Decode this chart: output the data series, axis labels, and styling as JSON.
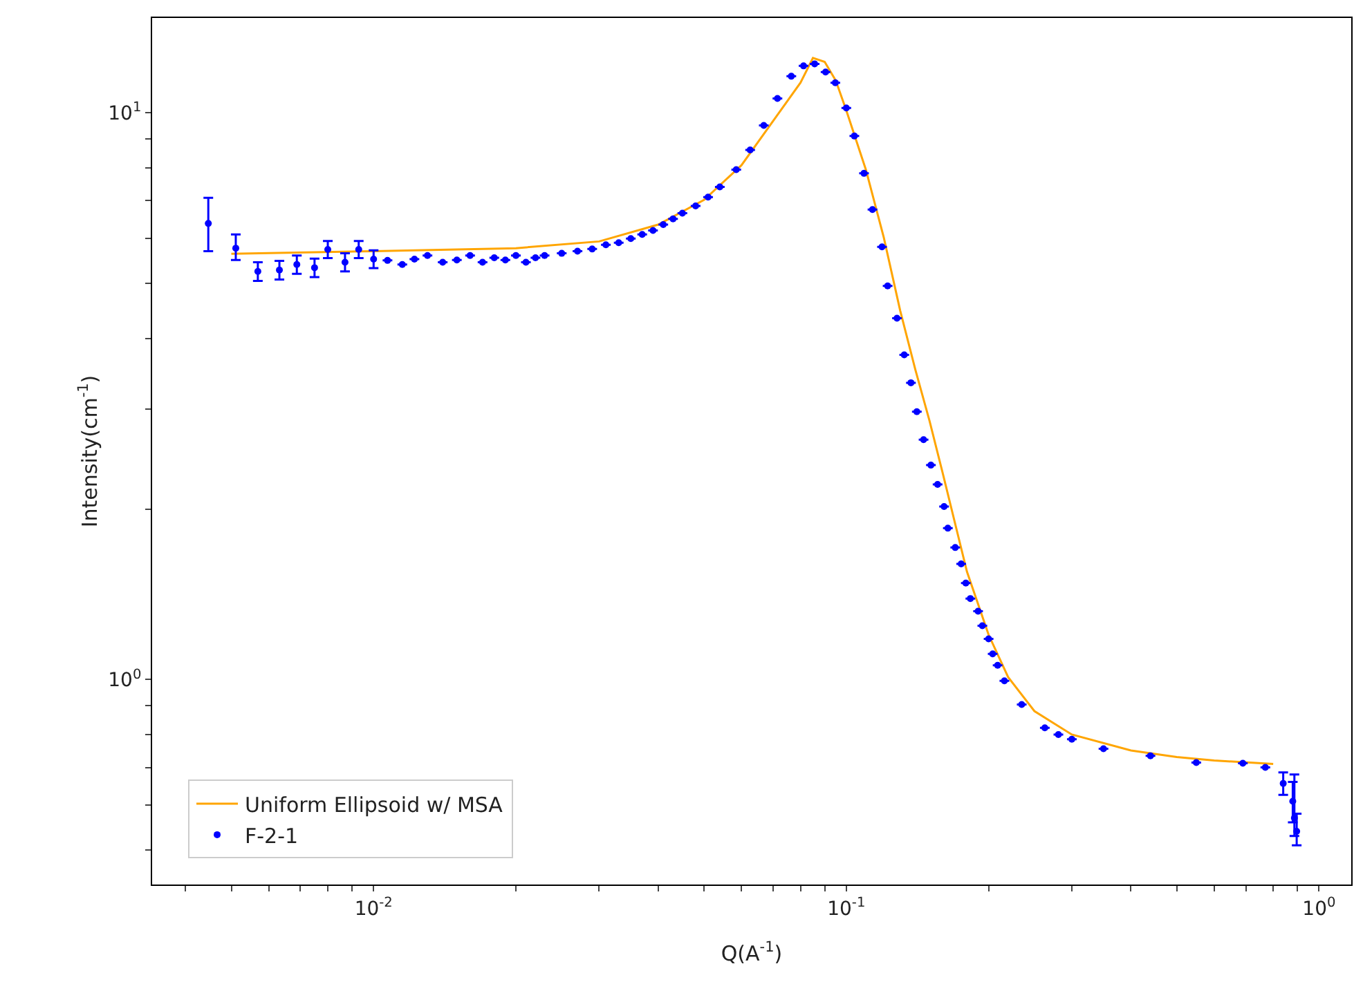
{
  "chart_data": {
    "type": "scatter",
    "xlabel": "Q(A$^{-1}$)",
    "ylabel": "Intensity(cm$^{-1}$)",
    "log": "xy",
    "grid": false,
    "legend": "bottom left",
    "line_style": "solid",
    "xlim": [
      0.0034,
      1.17
    ],
    "ylim": [
      0.435,
      14.7
    ],
    "xticks": [
      {
        "value": 0.004,
        "label": null
      },
      {
        "value": 0.005,
        "label": null
      },
      {
        "value": 0.006,
        "label": null
      },
      {
        "value": 0.007,
        "label": null
      },
      {
        "value": 0.008,
        "label": null
      },
      {
        "value": 0.009,
        "label": null
      },
      {
        "value": 0.01,
        "label": "10$^{-2}$"
      },
      {
        "value": 0.02,
        "label": null
      },
      {
        "value": 0.03,
        "label": null
      },
      {
        "value": 0.04,
        "label": null
      },
      {
        "value": 0.05,
        "label": null
      },
      {
        "value": 0.06,
        "label": null
      },
      {
        "value": 0.07,
        "label": null
      },
      {
        "value": 0.08,
        "label": null
      },
      {
        "value": 0.09,
        "label": null
      },
      {
        "value": 0.1,
        "label": "10$^{-1}$"
      },
      {
        "value": 0.2,
        "label": null
      },
      {
        "value": 0.3,
        "label": null
      },
      {
        "value": 0.4,
        "label": null
      },
      {
        "value": 0.5,
        "label": null
      },
      {
        "value": 0.6,
        "label": null
      },
      {
        "value": 0.7,
        "label": null
      },
      {
        "value": 0.8,
        "label": null
      },
      {
        "value": 0.9,
        "label": null
      },
      {
        "value": 1,
        "label": "10$^{0}$"
      }
    ],
    "yticks": [
      {
        "value": 0.5,
        "label": null
      },
      {
        "value": 0.6,
        "label": null
      },
      {
        "value": 0.7,
        "label": null
      },
      {
        "value": 0.8,
        "label": null
      },
      {
        "value": 0.9,
        "label": null
      },
      {
        "value": 1,
        "label": "10$^{0}$"
      },
      {
        "value": 2,
        "label": null
      },
      {
        "value": 3,
        "label": null
      },
      {
        "value": 4,
        "label": null
      },
      {
        "value": 5,
        "label": null
      },
      {
        "value": 6,
        "label": null
      },
      {
        "value": 7,
        "label": null
      },
      {
        "value": 8,
        "label": null
      },
      {
        "value": 9,
        "label": null
      },
      {
        "value": 10,
        "label": "10$^{1}$"
      }
    ],
    "series": [
      {
        "type": "line",
        "name": "Uniform Ellipsoid w/ MSA",
        "color": "#ffa500",
        "x": [
          0.005,
          0.01,
          0.02,
          0.03,
          0.04,
          0.05,
          0.06,
          0.07,
          0.08,
          0.085,
          0.09,
          0.095,
          0.1,
          0.11,
          0.12,
          0.13,
          0.14,
          0.15,
          0.16,
          0.18,
          0.2,
          0.22,
          0.25,
          0.3,
          0.4,
          0.5,
          0.6,
          0.8
        ],
        "values": [
          5.64,
          5.7,
          5.77,
          5.93,
          6.35,
          7.02,
          8.08,
          9.67,
          11.3,
          12.5,
          12.3,
          11.4,
          10.1,
          7.94,
          6.03,
          4.48,
          3.52,
          2.86,
          2.31,
          1.55,
          1.2,
          1.01,
          0.88,
          0.8,
          0.75,
          0.73,
          0.72,
          0.71
        ]
      },
      {
        "name": "F-2-1",
        "color": "#0000ff",
        "marker": "circle",
        "x": [
          0.00447,
          0.00511,
          0.00569,
          0.00632,
          0.00688,
          0.0075,
          0.008,
          0.0087,
          0.0093,
          0.01,
          0.0107,
          0.0115,
          0.0122,
          0.013,
          0.014,
          0.015,
          0.016,
          0.017,
          0.018,
          0.019,
          0.02,
          0.021,
          0.022,
          0.023,
          0.025,
          0.027,
          0.029,
          0.031,
          0.033,
          0.035,
          0.037,
          0.039,
          0.041,
          0.043,
          0.045,
          0.048,
          0.051,
          0.054,
          0.0585,
          0.0626,
          0.0669,
          0.0715,
          0.0765,
          0.0812,
          0.0857,
          0.0904,
          0.0948,
          0.1,
          0.104,
          0.109,
          0.1136,
          0.119,
          0.1223,
          0.128,
          0.1326,
          0.137,
          0.141,
          0.1457,
          0.151,
          0.156,
          0.161,
          0.164,
          0.17,
          0.175,
          0.179,
          0.183,
          0.19,
          0.194,
          0.2,
          0.204,
          0.209,
          0.216,
          0.235,
          0.263,
          0.281,
          0.3,
          0.35,
          0.44,
          0.55,
          0.69,
          0.77,
          0.84,
          0.88,
          0.887,
          0.897
        ],
        "values": [
          6.38,
          5.77,
          5.25,
          5.28,
          5.4,
          5.33,
          5.74,
          5.45,
          5.74,
          5.52,
          5.49,
          5.4,
          5.52,
          5.6,
          5.45,
          5.5,
          5.6,
          5.45,
          5.55,
          5.5,
          5.6,
          5.45,
          5.55,
          5.6,
          5.65,
          5.7,
          5.75,
          5.85,
          5.9,
          6.0,
          6.1,
          6.2,
          6.35,
          6.5,
          6.65,
          6.85,
          7.1,
          7.4,
          7.94,
          8.6,
          9.5,
          10.6,
          11.6,
          12.1,
          12.2,
          11.8,
          11.3,
          10.2,
          9.1,
          7.82,
          6.75,
          5.8,
          4.95,
          4.34,
          3.74,
          3.34,
          2.97,
          2.65,
          2.39,
          2.21,
          2.02,
          1.85,
          1.71,
          1.6,
          1.48,
          1.39,
          1.32,
          1.245,
          1.18,
          1.11,
          1.06,
          0.995,
          0.904,
          0.822,
          0.8,
          0.785,
          0.755,
          0.734,
          0.714,
          0.712,
          0.7,
          0.656,
          0.61,
          0.57,
          0.54
        ],
        "errors": [
          [
            5.7,
            7.08
          ],
          [
            5.5,
            6.1
          ],
          0.2,
          0.2,
          0.2,
          0.2,
          0.2,
          0.2,
          0.2,
          0.2,
          null,
          null,
          null,
          null,
          null,
          null,
          null,
          null,
          null,
          null,
          null,
          null,
          null,
          null,
          null,
          null,
          null,
          null,
          null,
          null,
          null,
          null,
          null,
          null,
          null,
          null,
          null,
          null,
          null,
          null,
          null,
          null,
          null,
          null,
          null,
          null,
          null,
          null,
          null,
          null,
          null,
          null,
          null,
          null,
          null,
          null,
          null,
          null,
          null,
          null,
          null,
          null,
          null,
          null,
          null,
          null,
          null,
          null,
          null,
          null,
          null,
          null,
          null,
          null,
          null,
          null,
          null,
          null,
          null,
          null,
          null,
          0.03,
          [
            0.56,
            0.66
          ],
          [
            0.53,
            0.68
          ],
          [
            0.51,
            0.58
          ]
        ]
      }
    ]
  }
}
